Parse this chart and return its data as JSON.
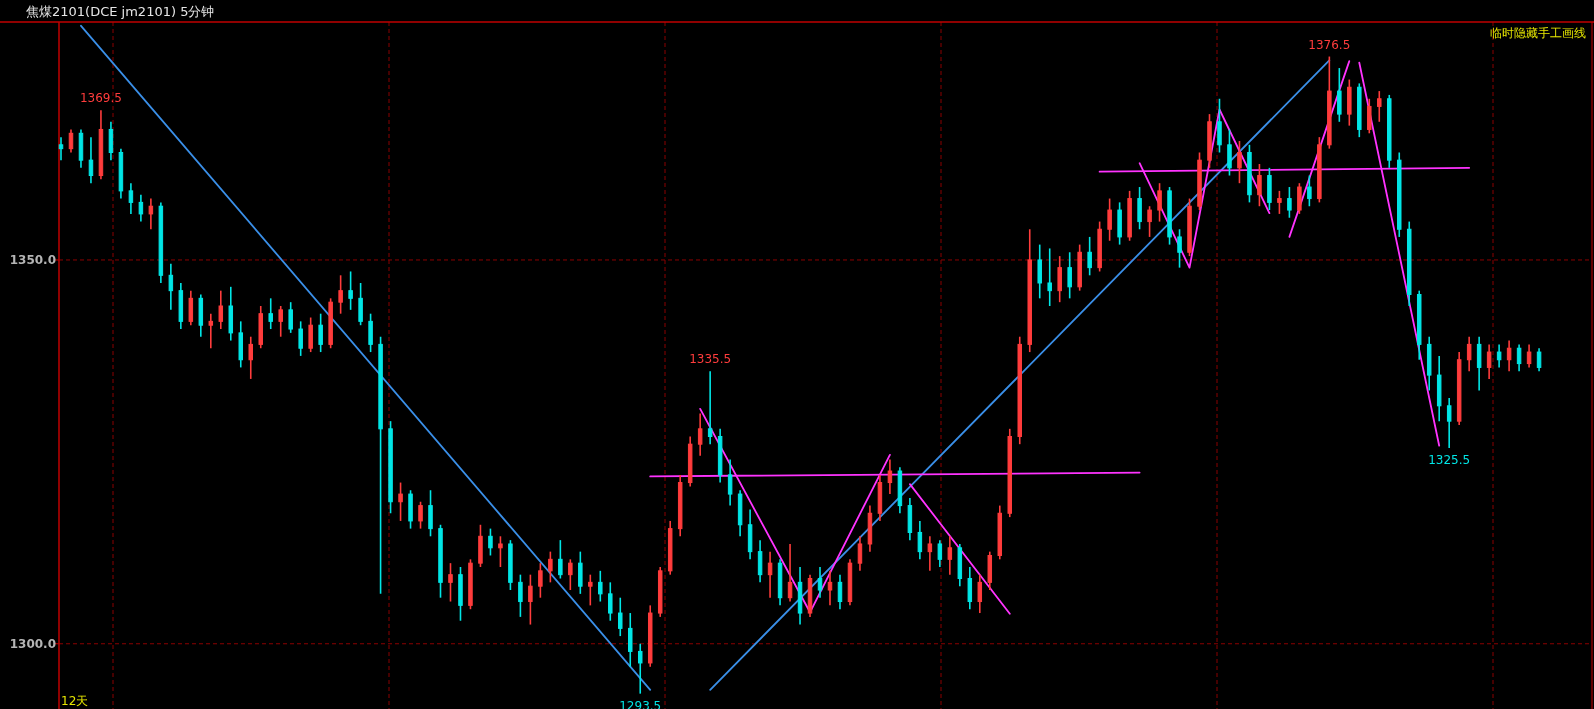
{
  "chart_data": {
    "type": "candlestick",
    "title": "焦煤2101(DCE jm2101)  5分钟",
    "categories": [
      null,
      null,
      null,
      null,
      null,
      null,
      null,
      null,
      null,
      null,
      null,
      null,
      null,
      null,
      null,
      null,
      null,
      null,
      null,
      null,
      null,
      null,
      null,
      null,
      null,
      null,
      null,
      null,
      null,
      null,
      null,
      null,
      null,
      null,
      null,
      null,
      null,
      null,
      null,
      null,
      null,
      null,
      null,
      null,
      null,
      null,
      null,
      null,
      null,
      null,
      null,
      null,
      null,
      null,
      null,
      null,
      null,
      null,
      null,
      null,
      null,
      null,
      null,
      null,
      null,
      null,
      null,
      null,
      null,
      null,
      null,
      null,
      null,
      null,
      null,
      null,
      null,
      null,
      null,
      null,
      null,
      null,
      null,
      null,
      null,
      null,
      null,
      null,
      null,
      null,
      null,
      null,
      null,
      null,
      null,
      null,
      null,
      null,
      null,
      null,
      null,
      null,
      null,
      null,
      null,
      null,
      null,
      null,
      null,
      null,
      null,
      null,
      null,
      null,
      null,
      null,
      null,
      null,
      null,
      null,
      null,
      null,
      null,
      null,
      null,
      null,
      null,
      null,
      null,
      null,
      null,
      null,
      null,
      null,
      null,
      null,
      null,
      null,
      null,
      null,
      null,
      null,
      null,
      null,
      null,
      null,
      null,
      null,
      null
    ],
    "ohlc": [
      [
        1365,
        1366,
        1363,
        1364.5
      ],
      [
        1364.5,
        1367,
        1364,
        1366.5
      ],
      [
        1366.5,
        1367,
        1362,
        1363
      ],
      [
        1363,
        1366,
        1360,
        1361
      ],
      [
        1361,
        1369.5,
        1360.5,
        1367
      ],
      [
        1367,
        1368,
        1363,
        1364
      ],
      [
        1364,
        1364.5,
        1358,
        1359
      ],
      [
        1359,
        1360,
        1356,
        1357.5
      ],
      [
        1357.5,
        1358.5,
        1355,
        1356
      ],
      [
        1356,
        1358,
        1354,
        1357
      ],
      [
        1357,
        1357.5,
        1347,
        1348
      ],
      [
        1348,
        1349.5,
        1343.5,
        1346
      ],
      [
        1346,
        1347,
        1341,
        1342
      ],
      [
        1342,
        1346,
        1341.5,
        1345
      ],
      [
        1345,
        1345.5,
        1340,
        1341.5
      ],
      [
        1341.5,
        1343,
        1338.5,
        1342
      ],
      [
        1342,
        1346,
        1341,
        1344
      ],
      [
        1344,
        1346.5,
        1339.5,
        1340.5
      ],
      [
        1340.5,
        1342,
        1336,
        1337
      ],
      [
        1337,
        1340,
        1334.5,
        1339
      ],
      [
        1339,
        1344,
        1338.5,
        1343
      ],
      [
        1343,
        1345,
        1341,
        1342
      ],
      [
        1342,
        1344,
        1340,
        1343.5
      ],
      [
        1343.5,
        1344.5,
        1340.5,
        1341
      ],
      [
        1341,
        1342,
        1337.5,
        1338.5
      ],
      [
        1338.5,
        1342.5,
        1338,
        1341.5
      ],
      [
        1341.5,
        1343,
        1338,
        1339
      ],
      [
        1339,
        1345,
        1338.5,
        1344.5
      ],
      [
        1344.5,
        1348,
        1343,
        1346
      ],
      [
        1346,
        1348.5,
        1343.5,
        1345
      ],
      [
        1345,
        1347,
        1341.5,
        1342
      ],
      [
        1342,
        1343,
        1338,
        1339
      ],
      [
        1339,
        1340,
        1306.5,
        1328
      ],
      [
        1328,
        1329,
        1317,
        1318.5
      ],
      [
        1318.5,
        1321,
        1316,
        1319.5
      ],
      [
        1319.5,
        1320,
        1315,
        1316
      ],
      [
        1316,
        1318.5,
        1315,
        1318
      ],
      [
        1318,
        1320,
        1314,
        1315
      ],
      [
        1315,
        1315.5,
        1306,
        1308
      ],
      [
        1308,
        1310.5,
        1305.5,
        1309
      ],
      [
        1309,
        1310,
        1303,
        1305
      ],
      [
        1305,
        1311,
        1304.5,
        1310.5
      ],
      [
        1310.5,
        1315.5,
        1310,
        1314
      ],
      [
        1314,
        1315,
        1311.5,
        1312.5
      ],
      [
        1312.5,
        1314,
        1310,
        1313
      ],
      [
        1313,
        1313.5,
        1307,
        1308
      ],
      [
        1308,
        1309,
        1303.5,
        1305.5
      ],
      [
        1305.5,
        1309,
        1302.5,
        1307.5
      ],
      [
        1307.5,
        1310.5,
        1306,
        1309.5
      ],
      [
        1309.5,
        1312,
        1308,
        1311
      ],
      [
        1311,
        1313.5,
        1308.5,
        1309
      ],
      [
        1309,
        1311,
        1307,
        1310.5
      ],
      [
        1310.5,
        1312,
        1306.5,
        1307.5
      ],
      [
        1307.5,
        1309,
        1305,
        1308
      ],
      [
        1308,
        1309.5,
        1305.5,
        1306.5
      ],
      [
        1306.5,
        1308,
        1303,
        1304
      ],
      [
        1304,
        1306,
        1301,
        1302
      ],
      [
        1302,
        1304,
        1297,
        1299
      ],
      [
        1299,
        1300,
        1293.5,
        1297.5
      ],
      [
        1297.5,
        1305,
        1297,
        1304
      ],
      [
        1304,
        1310,
        1303.5,
        1309.5
      ],
      [
        1309.5,
        1316,
        1309,
        1315
      ],
      [
        1315,
        1322,
        1314,
        1321
      ],
      [
        1321,
        1327,
        1320.5,
        1326
      ],
      [
        1326,
        1330,
        1324.5,
        1328
      ],
      [
        1328,
        1335.5,
        1326,
        1327
      ],
      [
        1327,
        1328,
        1321,
        1322
      ],
      [
        1322,
        1324,
        1318,
        1319.5
      ],
      [
        1319.5,
        1320,
        1314,
        1315.5
      ],
      [
        1315.5,
        1317.5,
        1311,
        1312
      ],
      [
        1312,
        1313.5,
        1308,
        1309
      ],
      [
        1309,
        1312,
        1306,
        1310.5
      ],
      [
        1310.5,
        1311,
        1305,
        1306
      ],
      [
        1306,
        1313,
        1305.5,
        1308
      ],
      [
        1308,
        1310,
        1302.5,
        1304
      ],
      [
        1304,
        1309,
        1303.5,
        1308.5
      ],
      [
        1308.5,
        1310,
        1306,
        1307
      ],
      [
        1307,
        1309.5,
        1305,
        1308
      ],
      [
        1308,
        1309,
        1304.5,
        1305.5
      ],
      [
        1305.5,
        1311,
        1305,
        1310.5
      ],
      [
        1310.5,
        1314,
        1309.5,
        1313
      ],
      [
        1313,
        1318,
        1312,
        1317
      ],
      [
        1317,
        1322,
        1316,
        1321
      ],
      [
        1321,
        1324,
        1319.5,
        1322.5
      ],
      [
        1322.5,
        1323,
        1317,
        1318
      ],
      [
        1318,
        1319,
        1313.5,
        1314.5
      ],
      [
        1314.5,
        1316,
        1311,
        1312
      ],
      [
        1312,
        1314,
        1309.5,
        1313
      ],
      [
        1313,
        1313.5,
        1310,
        1311
      ],
      [
        1311,
        1314,
        1309,
        1312.5
      ],
      [
        1312.5,
        1313,
        1307.5,
        1308.5
      ],
      [
        1308.5,
        1310,
        1304.5,
        1305.5
      ],
      [
        1305.5,
        1309,
        1304,
        1308
      ],
      [
        1308,
        1312,
        1307,
        1311.5
      ],
      [
        1311.5,
        1318,
        1311,
        1317
      ],
      [
        1317,
        1328,
        1316.5,
        1327
      ],
      [
        1327,
        1340,
        1326,
        1339
      ],
      [
        1339,
        1354,
        1338,
        1350
      ],
      [
        1350,
        1352,
        1345,
        1347
      ],
      [
        1347,
        1351.5,
        1344,
        1346
      ],
      [
        1346,
        1350.5,
        1344.5,
        1349
      ],
      [
        1349,
        1351,
        1345,
        1346.5
      ],
      [
        1346.5,
        1352,
        1346,
        1351
      ],
      [
        1351,
        1353,
        1348,
        1349
      ],
      [
        1349,
        1355,
        1348.5,
        1354
      ],
      [
        1354,
        1358,
        1352.5,
        1356.5
      ],
      [
        1356.5,
        1357.5,
        1352,
        1353
      ],
      [
        1353,
        1359,
        1352.5,
        1358
      ],
      [
        1358,
        1359.5,
        1354,
        1355
      ],
      [
        1355,
        1357,
        1353,
        1356.5
      ],
      [
        1356.5,
        1360,
        1355,
        1359
      ],
      [
        1359,
        1359.5,
        1352,
        1353
      ],
      [
        1353,
        1354,
        1349,
        1351
      ],
      [
        1351,
        1358,
        1350.5,
        1357
      ],
      [
        1357,
        1364,
        1356.5,
        1363
      ],
      [
        1363,
        1369,
        1362,
        1368
      ],
      [
        1368,
        1371,
        1364,
        1365
      ],
      [
        1365,
        1367,
        1361,
        1362
      ],
      [
        1362,
        1365.5,
        1360,
        1364
      ],
      [
        1364,
        1365,
        1357.5,
        1358.5
      ],
      [
        1358.5,
        1362.5,
        1357,
        1361
      ],
      [
        1361,
        1362,
        1356.5,
        1357.5
      ],
      [
        1357.5,
        1359,
        1356,
        1358
      ],
      [
        1358,
        1359.5,
        1355.5,
        1356.5
      ],
      [
        1356.5,
        1360,
        1356,
        1359.5
      ],
      [
        1359.5,
        1361,
        1357,
        1358
      ],
      [
        1358,
        1366,
        1357.5,
        1365
      ],
      [
        1365,
        1376.5,
        1364.5,
        1372
      ],
      [
        1372,
        1375,
        1368,
        1369
      ],
      [
        1369,
        1373.5,
        1367.5,
        1372.5
      ],
      [
        1372.5,
        1373,
        1366,
        1367
      ],
      [
        1367,
        1371,
        1366.5,
        1370
      ],
      [
        1370,
        1372,
        1368,
        1371
      ],
      [
        1371,
        1371.5,
        1362,
        1363
      ],
      [
        1363,
        1364,
        1353,
        1354
      ],
      [
        1354,
        1355,
        1344,
        1345.5
      ],
      [
        1345.5,
        1346,
        1337,
        1339
      ],
      [
        1339,
        1340,
        1333,
        1335
      ],
      [
        1335,
        1337.5,
        1329,
        1331
      ],
      [
        1331,
        1332,
        1325.5,
        1329
      ],
      [
        1329,
        1338,
        1328.5,
        1337
      ],
      [
        1337,
        1340,
        1335.5,
        1339
      ],
      [
        1339,
        1340,
        1333,
        1336
      ],
      [
        1336,
        1339,
        1334.5,
        1338
      ],
      [
        1338,
        1339,
        1336,
        1337
      ],
      [
        1337,
        1339.5,
        1335.5,
        1338.5
      ],
      [
        1338.5,
        1339,
        1335.5,
        1336.5
      ],
      [
        1336.5,
        1339,
        1336,
        1338
      ],
      [
        1338,
        1338.5,
        1335.5,
        1336
      ]
    ],
    "series": [
      {
        "type": "line",
        "color": "#3a8fe8",
        "values": [
          null,
          null,
          1380.5,
          null,
          null,
          null,
          null,
          null,
          null,
          null,
          null,
          null,
          null,
          null,
          null,
          null,
          null,
          null,
          null,
          null,
          null,
          null,
          null,
          null,
          null,
          null,
          null,
          null,
          null,
          null,
          null,
          null,
          null,
          null,
          null,
          null,
          null,
          null,
          null,
          null,
          null,
          null,
          null,
          null,
          null,
          null,
          null,
          null,
          null,
          null,
          null,
          null,
          null,
          null,
          null,
          null,
          null,
          null,
          null,
          1294,
          null,
          null,
          null,
          null,
          null,
          null,
          null,
          null,
          null,
          null,
          null,
          null,
          null,
          null,
          null,
          null,
          null,
          null,
          null,
          null,
          null,
          null,
          null,
          null,
          null,
          null,
          null,
          null,
          null,
          null,
          null,
          null,
          null,
          null,
          null,
          null,
          null,
          null,
          null,
          null,
          null,
          null,
          null,
          null,
          null,
          null,
          null,
          null,
          null,
          null,
          null,
          null,
          null,
          null,
          null,
          null,
          null,
          null,
          null,
          null,
          null,
          null,
          null,
          null,
          null,
          null,
          null,
          null,
          null,
          null,
          null,
          null,
          null,
          null,
          null,
          null,
          null,
          null,
          null,
          null,
          null,
          null,
          null,
          null,
          null,
          null,
          null,
          null,
          null
        ]
      },
      {
        "type": "line",
        "color": "#3a8fe8",
        "values": [
          null,
          null,
          null,
          null,
          null,
          null,
          null,
          null,
          null,
          null,
          null,
          null,
          null,
          null,
          null,
          null,
          null,
          null,
          null,
          null,
          null,
          null,
          null,
          null,
          null,
          null,
          null,
          null,
          null,
          null,
          null,
          null,
          null,
          null,
          null,
          null,
          null,
          null,
          null,
          null,
          null,
          null,
          null,
          null,
          null,
          null,
          null,
          null,
          null,
          null,
          null,
          null,
          null,
          null,
          null,
          null,
          null,
          null,
          null,
          null,
          null,
          null,
          null,
          null,
          null,
          1294,
          null,
          null,
          null,
          null,
          null,
          null,
          null,
          null,
          null,
          null,
          null,
          null,
          null,
          null,
          null,
          null,
          null,
          null,
          null,
          null,
          null,
          null,
          null,
          null,
          null,
          null,
          null,
          null,
          null,
          null,
          null,
          null,
          null,
          null,
          null,
          null,
          null,
          null,
          null,
          null,
          null,
          null,
          null,
          null,
          null,
          null,
          null,
          null,
          null,
          null,
          null,
          null,
          null,
          null,
          null,
          null,
          null,
          null,
          null,
          null,
          null,
          1376,
          null,
          null,
          null,
          null,
          null,
          null,
          null,
          null,
          null,
          null,
          null,
          null,
          null,
          null,
          null,
          null,
          null,
          null,
          null,
          null,
          null
        ]
      },
      {
        "type": "line",
        "color": "#ff33ff",
        "values": [
          null,
          null,
          null,
          null,
          null,
          null,
          null,
          null,
          null,
          null,
          null,
          null,
          null,
          null,
          null,
          null,
          null,
          null,
          null,
          null,
          null,
          null,
          null,
          null,
          null,
          null,
          null,
          null,
          null,
          null,
          null,
          null,
          null,
          null,
          null,
          null,
          null,
          null,
          null,
          null,
          null,
          null,
          null,
          null,
          null,
          null,
          null,
          null,
          null,
          null,
          null,
          null,
          null,
          null,
          null,
          null,
          null,
          null,
          null,
          1321.8,
          null,
          null,
          null,
          null,
          null,
          null,
          null,
          null,
          null,
          null,
          null,
          null,
          null,
          null,
          null,
          null,
          null,
          null,
          null,
          null,
          null,
          null,
          null,
          null,
          null,
          null,
          null,
          null,
          null,
          null,
          null,
          null,
          null,
          null,
          null,
          null,
          null,
          null,
          null,
          null,
          null,
          null,
          null,
          null,
          null,
          null,
          null,
          null,
          1322.3,
          null,
          null,
          null,
          null,
          null,
          null,
          null,
          null,
          null,
          null,
          null,
          null,
          null,
          null,
          null,
          null,
          null,
          null,
          null,
          null,
          null,
          null,
          null,
          null,
          null,
          null,
          null,
          null,
          null,
          null,
          null,
          null,
          null,
          null,
          null,
          null,
          null,
          null,
          null,
          null
        ]
      },
      {
        "type": "line",
        "color": "#ff33ff",
        "values": [
          null,
          null,
          null,
          null,
          null,
          null,
          null,
          null,
          null,
          null,
          null,
          null,
          null,
          null,
          null,
          null,
          null,
          null,
          null,
          null,
          null,
          null,
          null,
          null,
          null,
          null,
          null,
          null,
          null,
          null,
          null,
          null,
          null,
          null,
          null,
          null,
          null,
          null,
          null,
          null,
          null,
          null,
          null,
          null,
          null,
          null,
          null,
          null,
          null,
          null,
          null,
          null,
          null,
          null,
          null,
          null,
          null,
          null,
          null,
          null,
          null,
          null,
          null,
          null,
          null,
          null,
          null,
          null,
          null,
          null,
          null,
          null,
          null,
          null,
          null,
          null,
          null,
          null,
          null,
          null,
          null,
          null,
          null,
          null,
          null,
          null,
          null,
          null,
          null,
          null,
          null,
          null,
          null,
          null,
          null,
          null,
          null,
          null,
          null,
          null,
          null,
          null,
          null,
          null,
          1361.5,
          null,
          null,
          null,
          null,
          null,
          null,
          null,
          null,
          null,
          null,
          null,
          null,
          null,
          null,
          null,
          null,
          null,
          null,
          null,
          null,
          null,
          null,
          null,
          null,
          null,
          null,
          null,
          null,
          null,
          null,
          null,
          null,
          null,
          null,
          null,
          null,
          1362,
          null,
          null,
          null,
          null,
          null,
          null,
          null
        ]
      },
      {
        "type": "line",
        "color": "#ff33ff",
        "values": [
          null,
          null,
          null,
          null,
          null,
          null,
          null,
          null,
          null,
          null,
          null,
          null,
          null,
          null,
          null,
          null,
          null,
          null,
          null,
          null,
          null,
          null,
          null,
          null,
          null,
          null,
          null,
          null,
          null,
          null,
          null,
          null,
          null,
          null,
          null,
          null,
          null,
          null,
          null,
          null,
          null,
          null,
          null,
          null,
          null,
          null,
          null,
          null,
          null,
          null,
          null,
          null,
          null,
          null,
          null,
          null,
          null,
          null,
          null,
          null,
          null,
          null,
          null,
          null,
          1330.6,
          null,
          null,
          null,
          null,
          null,
          null,
          null,
          null,
          null,
          null,
          1304.1,
          null,
          null,
          null,
          null,
          null,
          null,
          null,
          1324.6,
          null,
          null,
          null,
          null,
          null,
          null,
          null,
          null,
          null,
          null,
          null,
          null,
          null,
          null,
          null,
          null,
          null,
          null,
          null,
          null,
          null,
          null,
          null,
          null,
          null,
          null,
          null,
          null,
          null,
          null,
          null,
          null,
          null,
          null,
          null,
          null,
          null,
          null,
          null,
          null,
          null,
          null,
          null,
          null,
          null,
          null,
          null,
          null,
          null,
          null,
          null,
          null,
          null,
          null,
          null,
          null,
          null,
          null,
          null,
          null,
          null,
          null,
          null,
          null,
          null
        ]
      },
      {
        "type": "line",
        "color": "#ff33ff",
        "values": [
          null,
          null,
          null,
          null,
          null,
          null,
          null,
          null,
          null,
          null,
          null,
          null,
          null,
          null,
          null,
          null,
          null,
          null,
          null,
          null,
          null,
          null,
          null,
          null,
          null,
          null,
          null,
          null,
          null,
          null,
          null,
          null,
          null,
          null,
          null,
          null,
          null,
          null,
          null,
          null,
          null,
          null,
          null,
          null,
          null,
          null,
          null,
          null,
          null,
          null,
          null,
          null,
          null,
          null,
          null,
          null,
          null,
          null,
          null,
          null,
          null,
          null,
          null,
          null,
          null,
          null,
          null,
          null,
          null,
          null,
          null,
          null,
          null,
          null,
          null,
          null,
          null,
          null,
          null,
          null,
          null,
          null,
          null,
          null,
          null,
          1320.8,
          null,
          null,
          null,
          null,
          null,
          null,
          null,
          null,
          null,
          1303.9,
          null,
          null,
          null,
          null,
          null,
          null,
          null,
          null,
          null,
          null,
          null,
          null,
          null,
          null,
          null,
          null,
          null,
          null,
          null,
          null,
          null,
          null,
          null,
          null,
          null,
          null,
          null,
          null,
          null,
          null,
          null,
          null,
          null,
          null,
          null,
          null,
          null,
          null,
          null,
          null,
          null,
          null,
          null,
          null,
          null,
          null,
          null,
          null,
          null,
          null,
          null,
          null,
          null
        ]
      },
      {
        "type": "line",
        "color": "#ff33ff",
        "values": [
          null,
          null,
          null,
          null,
          null,
          null,
          null,
          null,
          null,
          null,
          null,
          null,
          null,
          null,
          null,
          null,
          null,
          null,
          null,
          null,
          null,
          null,
          null,
          null,
          null,
          null,
          null,
          null,
          null,
          null,
          null,
          null,
          null,
          null,
          null,
          null,
          null,
          null,
          null,
          null,
          null,
          null,
          null,
          null,
          null,
          null,
          null,
          null,
          null,
          null,
          null,
          null,
          null,
          null,
          null,
          null,
          null,
          null,
          null,
          null,
          null,
          null,
          null,
          null,
          null,
          null,
          null,
          null,
          null,
          null,
          null,
          null,
          null,
          null,
          null,
          null,
          null,
          null,
          null,
          null,
          null,
          null,
          null,
          null,
          null,
          null,
          null,
          null,
          null,
          null,
          null,
          null,
          null,
          null,
          null,
          null,
          null,
          null,
          null,
          null,
          null,
          null,
          null,
          null,
          null,
          null,
          null,
          null,
          1362.6,
          null,
          null,
          null,
          null,
          1349,
          null,
          null,
          1369.6,
          null,
          null,
          null,
          null,
          1356.1,
          null,
          null,
          null,
          null,
          null,
          null,
          null,
          null,
          null,
          null,
          null,
          null,
          null,
          null,
          null,
          null,
          null,
          null,
          null,
          null,
          null,
          null,
          null,
          null,
          null,
          null,
          null
        ]
      },
      {
        "type": "line",
        "color": "#ff33ff",
        "values": [
          null,
          null,
          null,
          null,
          null,
          null,
          null,
          null,
          null,
          null,
          null,
          null,
          null,
          null,
          null,
          null,
          null,
          null,
          null,
          null,
          null,
          null,
          null,
          null,
          null,
          null,
          null,
          null,
          null,
          null,
          null,
          null,
          null,
          null,
          null,
          null,
          null,
          null,
          null,
          null,
          null,
          null,
          null,
          null,
          null,
          null,
          null,
          null,
          null,
          null,
          null,
          null,
          null,
          null,
          null,
          null,
          null,
          null,
          null,
          null,
          null,
          null,
          null,
          null,
          null,
          null,
          null,
          null,
          null,
          null,
          null,
          null,
          null,
          null,
          null,
          null,
          null,
          null,
          null,
          null,
          null,
          null,
          null,
          null,
          null,
          null,
          null,
          null,
          null,
          null,
          null,
          null,
          null,
          null,
          null,
          null,
          null,
          null,
          null,
          null,
          null,
          null,
          null,
          null,
          null,
          null,
          null,
          null,
          null,
          null,
          null,
          null,
          null,
          null,
          null,
          null,
          null,
          null,
          null,
          null,
          null,
          null,
          null,
          1353,
          null,
          null,
          null,
          null,
          null,
          1375.9,
          null,
          null,
          null,
          null,
          null,
          null,
          null,
          null,
          null,
          null,
          null,
          null,
          null,
          null,
          null,
          null,
          null,
          null,
          null
        ]
      },
      {
        "type": "line",
        "color": "#ff33ff",
        "values": [
          null,
          null,
          null,
          null,
          null,
          null,
          null,
          null,
          null,
          null,
          null,
          null,
          null,
          null,
          null,
          null,
          null,
          null,
          null,
          null,
          null,
          null,
          null,
          null,
          null,
          null,
          null,
          null,
          null,
          null,
          null,
          null,
          null,
          null,
          null,
          null,
          null,
          null,
          null,
          null,
          null,
          null,
          null,
          null,
          null,
          null,
          null,
          null,
          null,
          null,
          null,
          null,
          null,
          null,
          null,
          null,
          null,
          null,
          null,
          null,
          null,
          null,
          null,
          null,
          null,
          null,
          null,
          null,
          null,
          null,
          null,
          null,
          null,
          null,
          null,
          null,
          null,
          null,
          null,
          null,
          null,
          null,
          null,
          null,
          null,
          null,
          null,
          null,
          null,
          null,
          null,
          null,
          null,
          null,
          null,
          null,
          null,
          null,
          null,
          null,
          null,
          null,
          null,
          null,
          null,
          null,
          null,
          null,
          null,
          null,
          null,
          null,
          null,
          null,
          null,
          null,
          null,
          null,
          null,
          null,
          null,
          null,
          null,
          null,
          null,
          null,
          null,
          null,
          null,
          null,
          1375.7,
          null,
          null,
          null,
          null,
          null,
          null,
          null,
          1325.8,
          null,
          null,
          null,
          null,
          null,
          null,
          null,
          null,
          null,
          null
        ]
      }
    ],
    "annotations": [
      {
        "text": "1369.5",
        "y": 1369.5
      },
      {
        "text": "1293.5",
        "y": 1293.5
      },
      {
        "text": "1335.5",
        "y": 1335.5
      },
      {
        "text": "1376.5",
        "y": 1376.5
      },
      {
        "text": "1325.5",
        "y": 1325.5
      },
      "12天",
      "临时隐藏手工画线"
    ],
    "ylim": [
      1291.5,
      1381
    ],
    "yticks": [
      {
        "value": 1300,
        "label": "1300.0"
      },
      {
        "value": 1350,
        "label": "1350.0"
      }
    ],
    "tick_labels": "y",
    "grid": "y"
  }
}
